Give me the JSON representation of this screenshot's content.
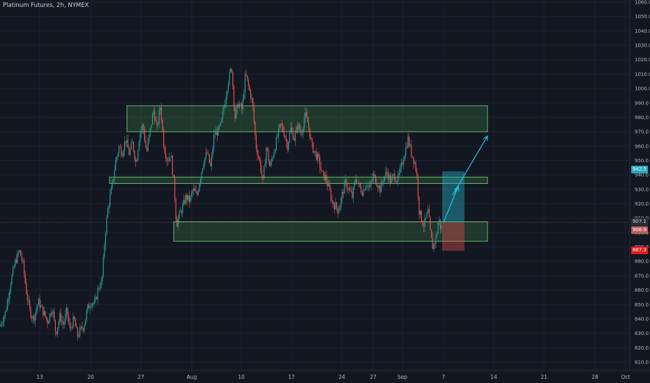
{
  "chart_title": "Platinum Futures, 2h, NYMEX",
  "colors": {
    "background": "#131722",
    "grid": "#1e2230",
    "axis_text": "#b2b5be",
    "candle_up": "#26a69a",
    "candle_down": "#ef5350",
    "zone_fill": "rgba(76,175,80,0.22)",
    "zone_border": "#7bdc7f",
    "target_fill": "rgba(38,166,188,0.45)",
    "stop_fill": "rgba(239,83,80,0.38)",
    "arrow": "#26c6da",
    "current_line": "#ef5350"
  },
  "price_labels": {
    "target": "942.5",
    "current": "907.1",
    "entry": "906.9",
    "stop": "887.3"
  },
  "chart_data": {
    "type": "candlestick",
    "title": "Platinum Futures, 2h, NYMEX",
    "y_ticks": [
      810,
      820,
      830,
      840,
      850,
      860,
      870,
      880,
      890,
      900,
      910,
      920,
      930,
      940,
      950,
      960,
      970,
      980,
      990,
      1000,
      1010,
      1020,
      1030,
      1040,
      1050,
      1060
    ],
    "ylim": [
      805,
      1063
    ],
    "x_ticks": [
      "13",
      "20",
      "27",
      "Aug",
      "10",
      "17",
      "24",
      "27",
      "Sep",
      "7",
      "14",
      "21",
      "28",
      "Oct"
    ],
    "price_path": [
      [
        0,
        835
      ],
      [
        8,
        845
      ],
      [
        15,
        865
      ],
      [
        22,
        880
      ],
      [
        28,
        887
      ],
      [
        33,
        878
      ],
      [
        38,
        858
      ],
      [
        43,
        845
      ],
      [
        48,
        840
      ],
      [
        55,
        852
      ],
      [
        62,
        845
      ],
      [
        68,
        838
      ],
      [
        75,
        848
      ],
      [
        80,
        830
      ],
      [
        86,
        842
      ],
      [
        91,
        836
      ],
      [
        96,
        846
      ],
      [
        100,
        832
      ],
      [
        106,
        840
      ],
      [
        111,
        828
      ],
      [
        115,
        832
      ],
      [
        120,
        835
      ],
      [
        126,
        848
      ],
      [
        131,
        852
      ],
      [
        136,
        850
      ],
      [
        141,
        862
      ],
      [
        146,
        865
      ],
      [
        151,
        900
      ],
      [
        155,
        918
      ],
      [
        160,
        930
      ],
      [
        166,
        950
      ],
      [
        171,
        960
      ],
      [
        175,
        955
      ],
      [
        180,
        965
      ],
      [
        185,
        955
      ],
      [
        190,
        962
      ],
      [
        195,
        948
      ],
      [
        200,
        968
      ],
      [
        205,
        975
      ],
      [
        210,
        955
      ],
      [
        215,
        970
      ],
      [
        220,
        985
      ],
      [
        225,
        972
      ],
      [
        230,
        988
      ],
      [
        235,
        960
      ],
      [
        240,
        950
      ],
      [
        245,
        955
      ],
      [
        250,
        930
      ],
      [
        253,
        905
      ],
      [
        257,
        912
      ],
      [
        262,
        918
      ],
      [
        267,
        925
      ],
      [
        272,
        922
      ],
      [
        277,
        930
      ],
      [
        282,
        925
      ],
      [
        287,
        938
      ],
      [
        292,
        950
      ],
      [
        297,
        955
      ],
      [
        302,
        945
      ],
      [
        307,
        968
      ],
      [
        312,
        970
      ],
      [
        317,
        975
      ],
      [
        322,
        990
      ],
      [
        327,
        1005
      ],
      [
        332,
        1015
      ],
      [
        337,
        980
      ],
      [
        342,
        990
      ],
      [
        347,
        985
      ],
      [
        352,
        1010
      ],
      [
        357,
        1000
      ],
      [
        362,
        990
      ],
      [
        367,
        960
      ],
      [
        372,
        950
      ],
      [
        377,
        935
      ],
      [
        382,
        960
      ],
      [
        387,
        945
      ],
      [
        392,
        955
      ],
      [
        397,
        965
      ],
      [
        402,
        975
      ],
      [
        407,
        970
      ],
      [
        412,
        960
      ],
      [
        417,
        972
      ],
      [
        422,
        965
      ],
      [
        427,
        975
      ],
      [
        432,
        968
      ],
      [
        437,
        982
      ],
      [
        442,
        975
      ],
      [
        447,
        960
      ],
      [
        452,
        955
      ],
      [
        457,
        950
      ],
      [
        462,
        940
      ],
      [
        467,
        938
      ],
      [
        472,
        930
      ],
      [
        477,
        920
      ],
      [
        482,
        918
      ],
      [
        485,
        915
      ],
      [
        490,
        925
      ],
      [
        495,
        935
      ],
      [
        500,
        930
      ],
      [
        505,
        925
      ],
      [
        510,
        938
      ],
      [
        515,
        932
      ],
      [
        520,
        928
      ],
      [
        525,
        935
      ],
      [
        530,
        930
      ],
      [
        535,
        940
      ],
      [
        540,
        935
      ],
      [
        545,
        930
      ],
      [
        550,
        938
      ],
      [
        555,
        942
      ],
      [
        560,
        935
      ],
      [
        565,
        940
      ],
      [
        570,
        936
      ],
      [
        575,
        945
      ],
      [
        580,
        955
      ],
      [
        585,
        965
      ],
      [
        590,
        955
      ],
      [
        595,
        948
      ],
      [
        598,
        938
      ],
      [
        601,
        915
      ],
      [
        604,
        910
      ],
      [
        607,
        905
      ],
      [
        610,
        908
      ],
      [
        614,
        915
      ],
      [
        617,
        900
      ],
      [
        620,
        890
      ],
      [
        623,
        893
      ],
      [
        626,
        898
      ],
      [
        629,
        910
      ],
      [
        632,
        902
      ],
      [
        634,
        906
      ]
    ],
    "zones": [
      {
        "top": 988,
        "bottom": 970,
        "x_start": 182,
        "x_end": 699
      },
      {
        "top": 938.5,
        "bottom": 934,
        "x_start": 157,
        "x_end": 699
      },
      {
        "top": 907.5,
        "bottom": 894,
        "x_start": 249,
        "x_end": 699
      }
    ],
    "long_position": {
      "entry": 906.9,
      "target": 942.5,
      "stop": 887.3,
      "x_start": 634,
      "x_end": 666
    },
    "current_price": 907.1,
    "projection": [
      [
        636,
        907
      ],
      [
        657,
        932
      ],
      [
        649,
        926
      ],
      [
        699,
        967
      ]
    ]
  }
}
